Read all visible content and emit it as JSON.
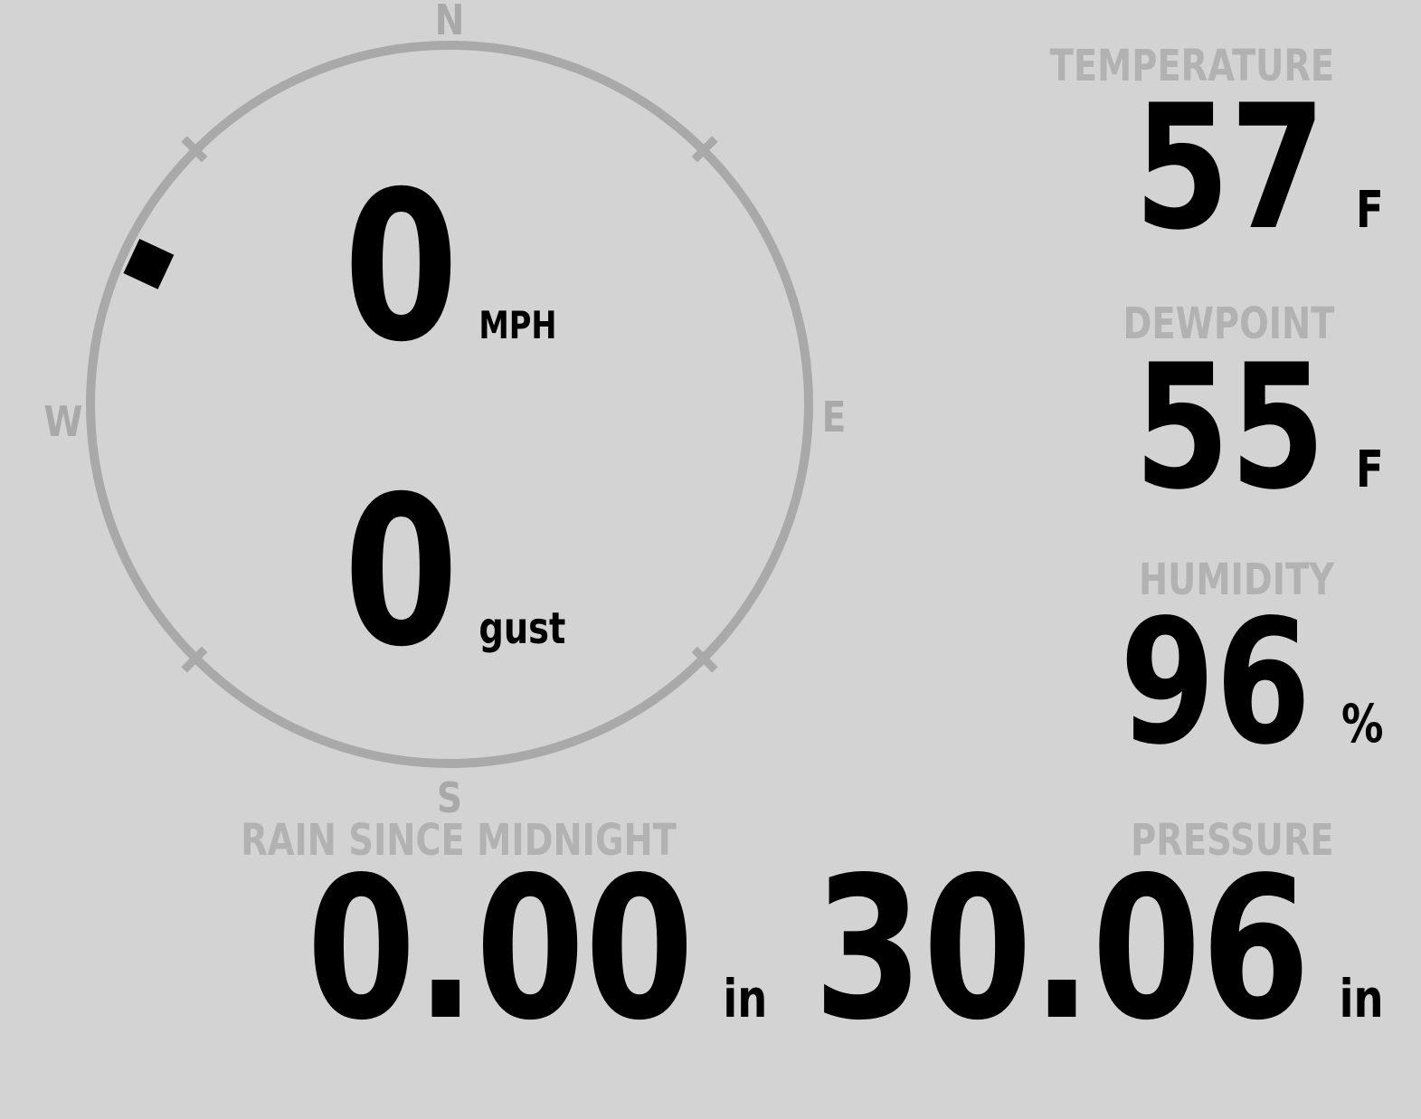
{
  "app": {
    "name": "weather-station-console"
  },
  "wind": {
    "compass": {
      "north": "N",
      "east": "E",
      "south": "S",
      "west": "W"
    },
    "direction_deg": 295,
    "speed": {
      "value": "0",
      "unit": "MPH"
    },
    "gust": {
      "value": "0",
      "unit": "gust"
    }
  },
  "metrics": {
    "temperature": {
      "label": "TEMPERATURE",
      "value": "57",
      "unit": "F"
    },
    "dewpoint": {
      "label": "DEWPOINT",
      "value": "55",
      "unit": "F"
    },
    "humidity": {
      "label": "HUMIDITY",
      "value": "96",
      "unit": "%"
    },
    "rain": {
      "label": "RAIN SINCE MIDNIGHT",
      "value": "0.00",
      "unit": "in"
    },
    "pressure": {
      "label": "PRESSURE",
      "value": "30.06",
      "unit": "in"
    }
  },
  "colors": {
    "background": "#d3d3d3",
    "compass": "#a9a9a9",
    "heading": "#b2b2b2",
    "value": "#000000",
    "wind_indicator": "#000000"
  }
}
